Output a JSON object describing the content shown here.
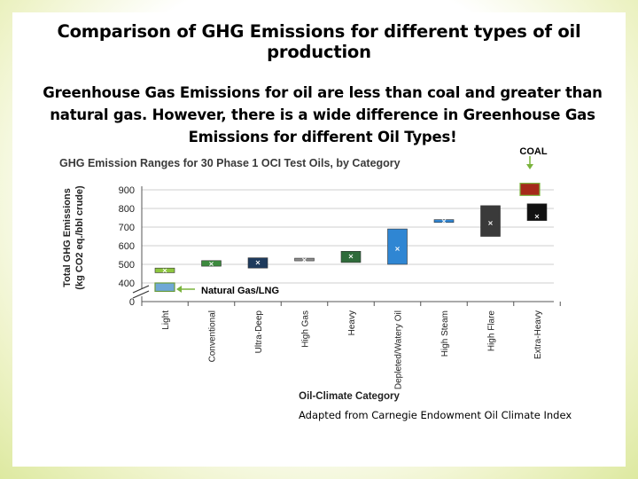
{
  "slide": {
    "title": "Comparison of GHG Emissions for different types of oil production",
    "subtitle": "Greenhouse Gas Emissions for oil are less than coal and greater than natural gas.  However, there is a wide difference in Greenhouse Gas Emissions for different Oil Types!",
    "source_note": "Adapted from Carnegie Endowment Oil Climate Index"
  },
  "chart_data": {
    "type": "range-bar",
    "title": "GHG Emission Ranges for 30 Phase 1 OCI Test Oils, by Category",
    "xlabel": "Oil-Climate Category",
    "ylabel": "Total GHG Emissions (kg CO2 eq./bbl crude)",
    "ylim": [
      400,
      900
    ],
    "y_axis_break": true,
    "yticks": [
      "0",
      "400",
      "500",
      "600",
      "700",
      "800",
      "900"
    ],
    "grid": true,
    "categories": [
      "Light",
      "Conventional",
      "Ultra-Deep",
      "High Gas",
      "Heavy",
      "Depleted/Watery Oil",
      "High Steam",
      "High Flare",
      "Extra-Heavy"
    ],
    "ranges": [
      {
        "category": "Light",
        "low": 455,
        "high": 480,
        "mean": 468,
        "color": "#8dc63f"
      },
      {
        "category": "Conventional",
        "low": 490,
        "high": 520,
        "mean": 505,
        "color": "#3c8a3e"
      },
      {
        "category": "Ultra-Deep",
        "low": 480,
        "high": 535,
        "mean": 512,
        "color": "#1e3a5c"
      },
      {
        "category": "High Gas",
        "low": 520,
        "high": 533,
        "mean": 527,
        "color": "#8c8c8c"
      },
      {
        "category": "Heavy",
        "low": 510,
        "high": 570,
        "mean": 545,
        "color": "#2e6b3a"
      },
      {
        "category": "Depleted/Watery Oil",
        "low": 500,
        "high": 690,
        "mean": 585,
        "color": "#2f86d3"
      },
      {
        "category": "High Steam",
        "low": 725,
        "high": 740,
        "mean": 733,
        "color": "#2f86d3"
      },
      {
        "category": "High Flare",
        "low": 650,
        "high": 815,
        "mean": 725,
        "color": "#3a3a3a"
      },
      {
        "category": "Extra-Heavy",
        "low": 735,
        "high": 825,
        "mean": 760,
        "color": "#111111"
      }
    ],
    "reference_boxes": [
      {
        "label": "Natural  Gas/LNG",
        "low": 355,
        "high": 400,
        "color": "#6fa8d6"
      },
      {
        "label": "COAL",
        "low": 870,
        "high": 935,
        "color": "#a52a1a"
      }
    ]
  }
}
